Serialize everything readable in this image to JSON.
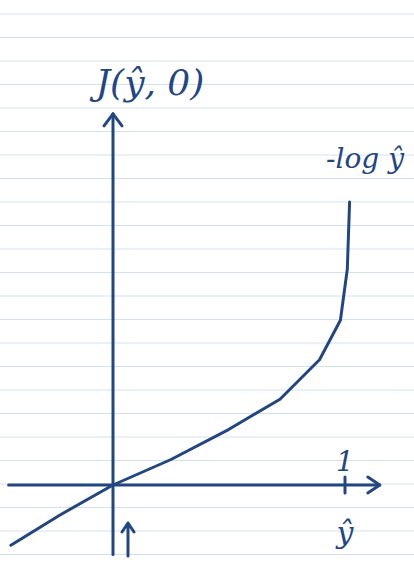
{
  "chart_data": {
    "type": "line",
    "y_label": "J(ŷ, 0)",
    "x_label": "ŷ",
    "annotations": [
      "-log ŷ"
    ],
    "x": [
      -0.44,
      -0.23,
      0,
      0.25,
      0.5,
      0.72,
      0.89,
      0.98,
      1.01,
      1.02
    ],
    "values": [
      -0.26,
      -0.13,
      0,
      0.11,
      0.24,
      0.37,
      0.54,
      0.71,
      0.93,
      1.22
    ],
    "color": "#24467f",
    "xlim": [
      -0.45,
      1.15
    ],
    "ylim": [
      -0.3,
      1.6
    ],
    "xticks": [
      1
    ],
    "yticks": [],
    "grid": false,
    "tick_labels": "x"
  }
}
